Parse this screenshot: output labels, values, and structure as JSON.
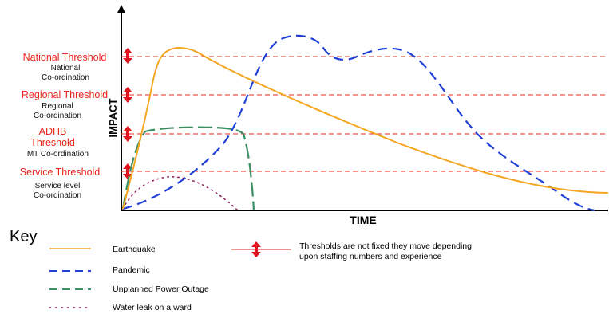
{
  "axes": {
    "x_label": "TIME",
    "y_label": "IMPACT"
  },
  "thresholds": [
    {
      "label": "National Threshold",
      "coordination": "National\nCo-ordination"
    },
    {
      "label": "Regional Threshold",
      "coordination": "Regional\nCo-ordination"
    },
    {
      "label": "ADHB\nThreshold",
      "coordination": "IMT Co-ordination"
    },
    {
      "label": "Service Threshold",
      "coordination": "Service level\nCo-ordination"
    }
  ],
  "key": {
    "title": "Key",
    "items": [
      {
        "label": "Earthquake",
        "color": "#f5a623",
        "style": "solid"
      },
      {
        "label": "Pandemic",
        "color": "#1f3fd6",
        "style": "dash"
      },
      {
        "label": "Unplanned Power Outage",
        "color": "#3a8f62",
        "style": "long-dash"
      },
      {
        "label": "Water leak on a ward",
        "color": "#8b1c5a",
        "style": "dot"
      }
    ],
    "threshold_note": "Thresholds are not fixed they move depending\nupon staffing numbers and experience"
  },
  "colors": {
    "threshold_line": "#e8261b",
    "arrow": "#e0141e"
  }
}
